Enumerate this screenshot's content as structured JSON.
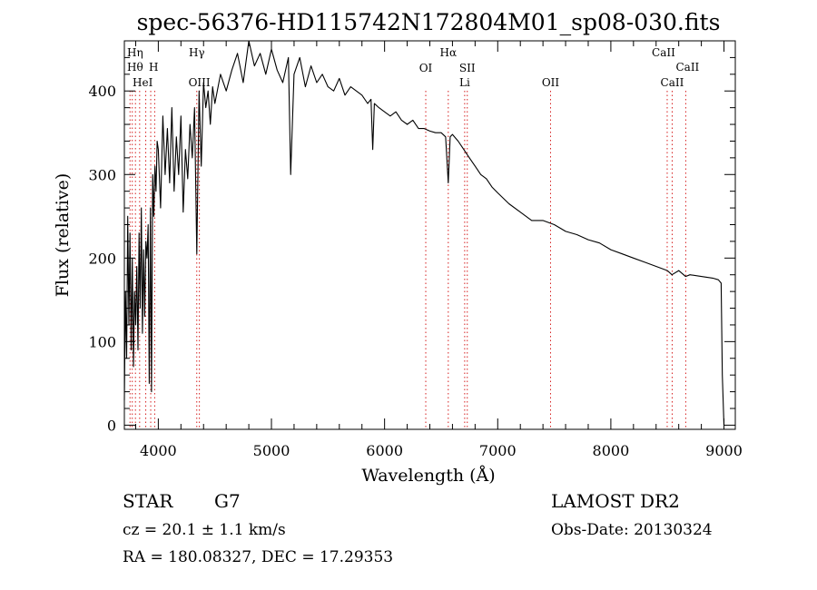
{
  "chart_data": {
    "type": "line",
    "title": "spec-56376-HD115742N172804M01_sp08-030.fits",
    "xlabel": "Wavelength (Å)",
    "ylabel": "Flux (relative)",
    "xlim": [
      3700,
      9100
    ],
    "ylim": [
      -5,
      460
    ],
    "x_ticks": [
      4000,
      5000,
      6000,
      7000,
      8000,
      9000
    ],
    "y_ticks": [
      0,
      100,
      200,
      300,
      400
    ],
    "x_tick_labels": [
      "4000",
      "5000",
      "6000",
      "7000",
      "8000",
      "9000"
    ],
    "y_tick_labels": [
      "0",
      "100",
      "200",
      "300",
      "400"
    ],
    "grid": false,
    "legend": "none",
    "line_color": "#000000",
    "marker_color": "#d62020",
    "series": [
      {
        "x": [
          3700,
          3710,
          3720,
          3730,
          3740,
          3750,
          3760,
          3770,
          3780,
          3790,
          3800,
          3810,
          3820,
          3830,
          3840,
          3850,
          3860,
          3870,
          3880,
          3890,
          3900,
          3910,
          3920,
          3930,
          3940,
          3950,
          3960,
          3970,
          3980,
          3990,
          4000,
          4020,
          4040,
          4060,
          4080,
          4100,
          4120,
          4140,
          4160,
          4180,
          4200,
          4220,
          4240,
          4260,
          4280,
          4300,
          4320,
          4340,
          4360,
          4380,
          4400,
          4420,
          4440,
          4460,
          4480,
          4500,
          4550,
          4600,
          4650,
          4700,
          4750,
          4800,
          4850,
          4900,
          4950,
          5000,
          5050,
          5100,
          5150,
          5170,
          5200,
          5250,
          5300,
          5350,
          5400,
          5450,
          5500,
          5550,
          5600,
          5650,
          5700,
          5750,
          5800,
          5850,
          5880,
          5895,
          5910,
          5950,
          6000,
          6050,
          6100,
          6150,
          6200,
          6250,
          6300,
          6350,
          6400,
          6450,
          6500,
          6540,
          6563,
          6580,
          6600,
          6650,
          6700,
          6750,
          6800,
          6850,
          6900,
          6950,
          7000,
          7100,
          7200,
          7300,
          7400,
          7500,
          7600,
          7700,
          7800,
          7900,
          8000,
          8100,
          8200,
          8300,
          8400,
          8500,
          8540,
          8600,
          8660,
          8700,
          8800,
          8900,
          8950,
          8975,
          8985,
          9000
        ],
        "y": [
          30,
          160,
          80,
          250,
          120,
          230,
          90,
          200,
          70,
          160,
          120,
          190,
          90,
          230,
          140,
          260,
          110,
          210,
          130,
          220,
          200,
          240,
          50,
          260,
          40,
          300,
          250,
          310,
          280,
          340,
          330,
          260,
          370,
          300,
          355,
          290,
          380,
          280,
          345,
          300,
          370,
          255,
          330,
          295,
          360,
          320,
          380,
          205,
          400,
          310,
          410,
          380,
          400,
          360,
          405,
          385,
          420,
          400,
          425,
          445,
          410,
          460,
          430,
          445,
          420,
          450,
          425,
          410,
          440,
          300,
          420,
          440,
          405,
          430,
          410,
          420,
          405,
          400,
          415,
          395,
          405,
          400,
          395,
          385,
          390,
          330,
          385,
          380,
          375,
          370,
          375,
          365,
          360,
          365,
          355,
          355,
          352,
          350,
          350,
          345,
          290,
          345,
          348,
          340,
          330,
          320,
          310,
          300,
          295,
          285,
          278,
          265,
          255,
          245,
          245,
          240,
          232,
          228,
          222,
          218,
          210,
          205,
          200,
          195,
          190,
          185,
          180,
          185,
          178,
          180,
          178,
          176,
          174,
          170,
          60,
          0
        ]
      }
    ],
    "line_markers": [
      {
        "x": 3750,
        "labels": []
      },
      {
        "x": 3770,
        "labels": []
      },
      {
        "x": 3798,
        "labels": []
      },
      {
        "x": 3835,
        "labels": [
          "Hη"
        ]
      },
      {
        "x": 3889,
        "labels": [
          "Hθ"
        ]
      },
      {
        "x": 3933,
        "labels": [
          "HeI"
        ]
      },
      {
        "x": 3968,
        "labels": [
          "H"
        ]
      },
      {
        "x": 4340,
        "labels": [
          "Hγ"
        ]
      },
      {
        "x": 4363,
        "labels": [
          "OIII"
        ]
      },
      {
        "x": 6364,
        "labels": [
          "OI"
        ]
      },
      {
        "x": 6563,
        "labels": [
          "Hα"
        ]
      },
      {
        "x": 6708,
        "labels": [
          "Li"
        ]
      },
      {
        "x": 6731,
        "labels": [
          "SII"
        ]
      },
      {
        "x": 7467,
        "labels": [
          "OII"
        ]
      },
      {
        "x": 8498,
        "labels": [
          "CaII"
        ]
      },
      {
        "x": 8542,
        "labels": [
          "CaII"
        ]
      },
      {
        "x": 8662,
        "labels": [
          "CaII"
        ]
      }
    ]
  },
  "info": {
    "object_class": "STAR",
    "subclass": "G7",
    "survey": "LAMOST DR2",
    "cz": "cz = 20.1 ± 1.1 km/s",
    "obs_date": "Obs-Date: 20130324",
    "coords": "RA = 180.08327, DEC =  17.29353"
  }
}
